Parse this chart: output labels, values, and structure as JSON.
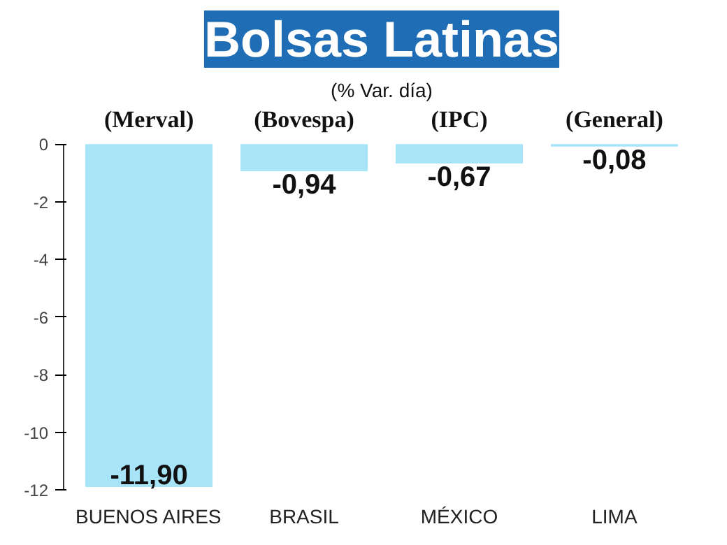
{
  "chart_data": {
    "type": "bar",
    "title": "Bolsas Latinas",
    "subtitle": "(% Var. día)",
    "categories": [
      "BUENOS AIRES",
      "BRASIL",
      "MÉXICO",
      "LIMA"
    ],
    "values": [
      -11.9,
      -0.94,
      -0.67,
      -0.08
    ],
    "value_labels": [
      "-11,90",
      "-0,94",
      "-0,67",
      "-0,08"
    ],
    "color": "#a8e4f8",
    "annotations": [
      "(Merval)",
      "(Bovespa)",
      "(IPC)",
      "(General)"
    ],
    "ylim": [
      -12,
      0
    ],
    "yticks": [
      0,
      -2,
      -4,
      -6,
      -8,
      -10,
      -12
    ],
    "grid": false
  }
}
